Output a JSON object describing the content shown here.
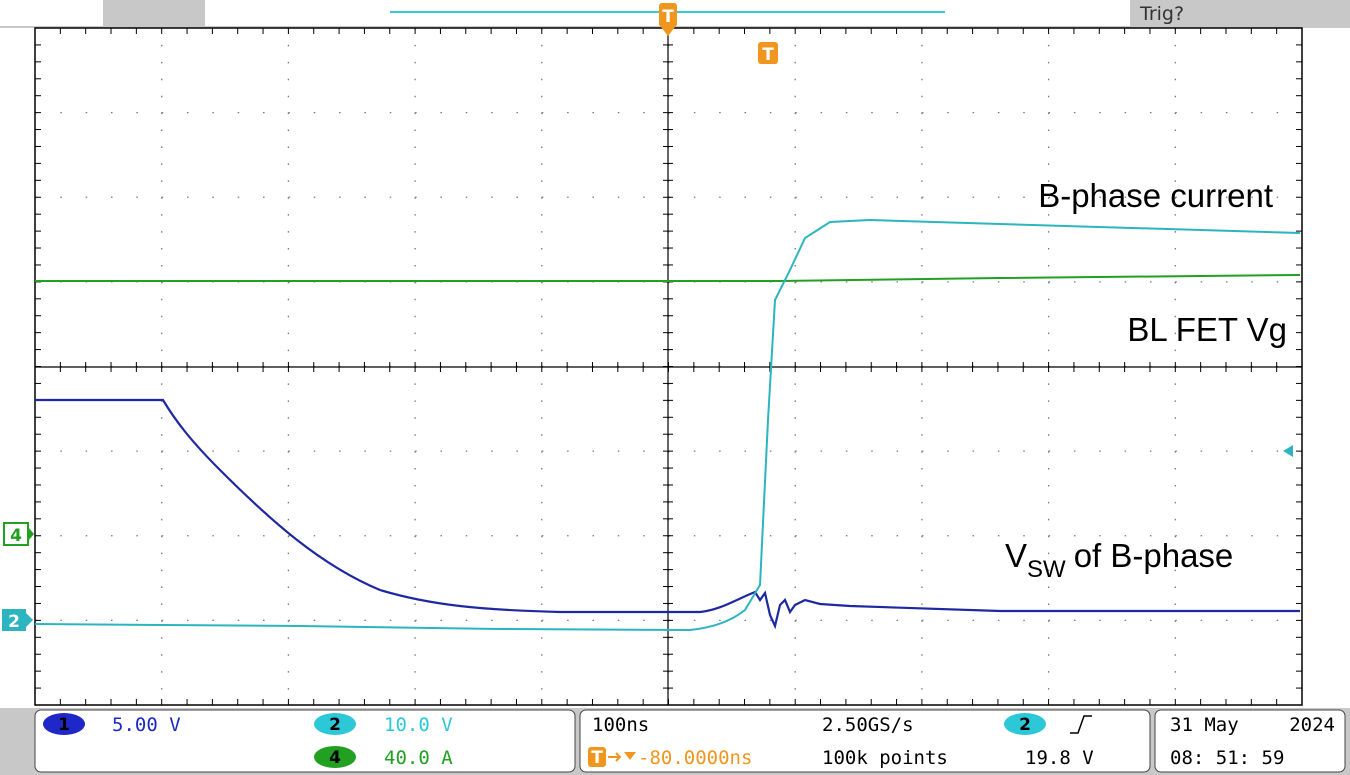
{
  "top_bar": {
    "trigger_status": "Trig?"
  },
  "annotations": {
    "current": "B-phase current",
    "gate": "BL FET Vg",
    "vsw_main": "V",
    "vsw_sub": "SW",
    "vsw_rest": "of B-phase"
  },
  "markers": {
    "ch4": "4",
    "ch2": "2",
    "trigger": "T"
  },
  "channels": [
    {
      "number": "1",
      "scale": "5.00 V"
    },
    {
      "number": "2",
      "scale": "10.0 V"
    },
    {
      "number": "4",
      "scale": "40.0 A"
    }
  ],
  "timebase": {
    "scale": "100ns",
    "position": "-80.0000ns",
    "sample_rate": "2.50GS/s",
    "record_length": "100k points"
  },
  "trigger": {
    "source": "2",
    "level": "19.8 V"
  },
  "datetime": {
    "date": "31 May",
    "year": "2024",
    "time": "08: 51: 59"
  }
}
